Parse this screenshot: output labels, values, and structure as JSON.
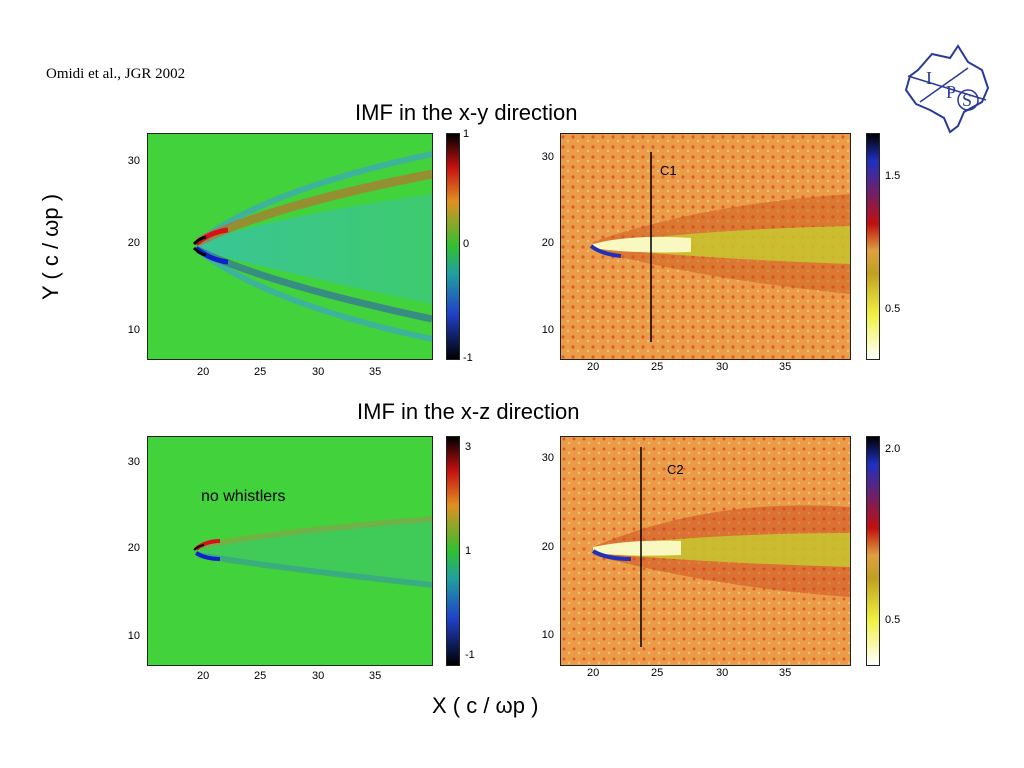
{
  "citation": "Omidi et al., JGR 2002",
  "logo": {
    "letters": [
      "I",
      "P",
      "S"
    ],
    "color": "#2a3a9a"
  },
  "y_axis_label": "Y ( c / ωp )",
  "x_axis_label": "X ( c / ωp )",
  "rows": [
    {
      "title": "IMF in the x-y direction",
      "left": {
        "colorbar_ticks": [
          "1",
          "0",
          "-1"
        ],
        "annotation": ""
      },
      "right": {
        "colorbar_ticks": [
          "1.5",
          "0.5"
        ],
        "cut_label": "C1"
      }
    },
    {
      "title": "IMF in the x-z direction",
      "left": {
        "colorbar_ticks": [
          "3",
          "1",
          "-1"
        ],
        "annotation": "no whistlers"
      },
      "right": {
        "colorbar_ticks": [
          "2.0",
          "0.5"
        ],
        "cut_label": "C2"
      }
    }
  ],
  "x_ticks": [
    "20",
    "25",
    "30",
    "35"
  ],
  "y_ticks": [
    "30",
    "20",
    "10"
  ]
}
